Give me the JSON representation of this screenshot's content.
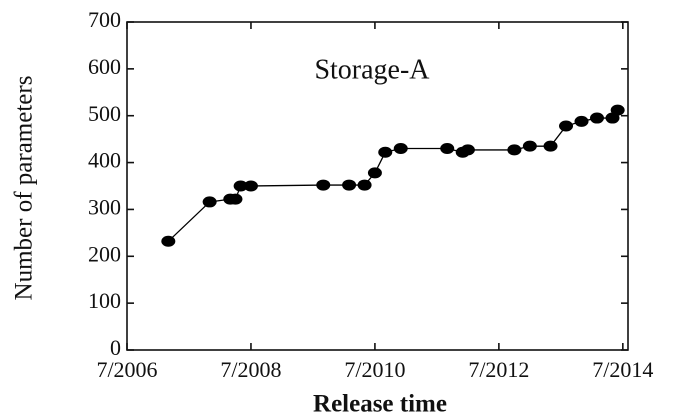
{
  "chart_data": {
    "type": "line",
    "annotation": "Storage-A",
    "xlabel": "Release time",
    "ylabel": "Number of parameters",
    "x": [
      "2007-03",
      "2007-11",
      "2008-03",
      "2008-04",
      "2008-05",
      "2008-07",
      "2009-09",
      "2010-02",
      "2010-05",
      "2010-07",
      "2010-09",
      "2010-12",
      "2011-09",
      "2011-12",
      "2012-01",
      "2012-10",
      "2013-01",
      "2013-05",
      "2013-08",
      "2013-11",
      "2014-02",
      "2014-05",
      "2014-06"
    ],
    "series": [
      {
        "name": "Storage-A",
        "color": "#000000",
        "values": [
          232,
          316,
          322,
          322,
          350,
          350,
          352,
          352,
          352,
          378,
          422,
          430,
          430,
          422,
          427,
          427,
          435,
          435,
          478,
          488,
          495,
          495,
          512
        ]
      }
    ],
    "xlim": [
      "2006-07",
      "2014-08"
    ],
    "xticks": [
      {
        "value": "2006-07",
        "label": "7/2006"
      },
      {
        "value": "2008-07",
        "label": "7/2008"
      },
      {
        "value": "2010-07",
        "label": "7/2010"
      },
      {
        "value": "2012-07",
        "label": "7/2012"
      },
      {
        "value": "2014-07",
        "label": "7/2014"
      }
    ],
    "ylim": [
      0,
      700
    ],
    "yticks": [
      0,
      100,
      200,
      300,
      400,
      500,
      600,
      700
    ]
  }
}
